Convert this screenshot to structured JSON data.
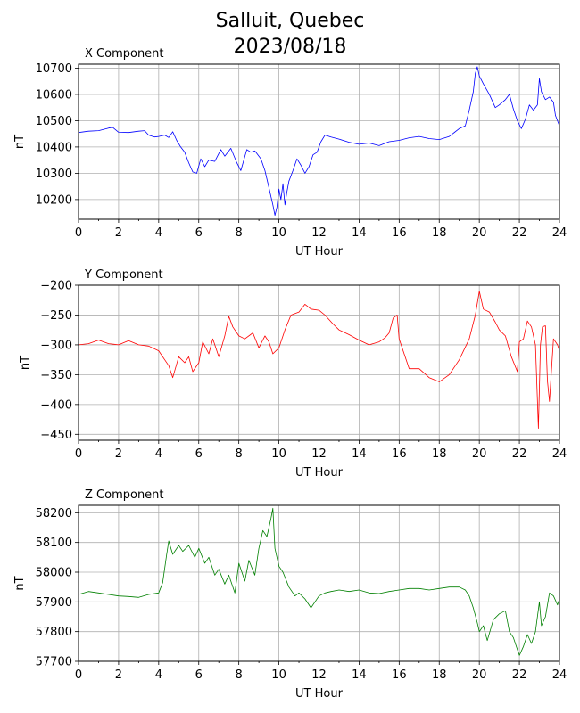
{
  "title_line1": "Salluit, Quebec",
  "title_line2": "2023/08/18",
  "chart_data": [
    {
      "type": "line",
      "title": "X Component",
      "xlabel": "UT Hour",
      "ylabel": "nT",
      "xlim": [
        0,
        24
      ],
      "ylim": [
        10125,
        10715
      ],
      "xticks": [
        0,
        2,
        4,
        6,
        8,
        10,
        12,
        14,
        16,
        18,
        20,
        22,
        24
      ],
      "yticks": [
        10200,
        10300,
        10400,
        10500,
        10600,
        10700
      ],
      "grid": true,
      "color": "#0000ff",
      "series": [
        {
          "x": [
            0,
            0.5,
            1,
            1.5,
            1.7,
            2,
            2.5,
            3,
            3.3,
            3.5,
            3.8,
            4,
            4.3,
            4.5,
            4.7,
            4.9,
            5.1,
            5.3,
            5.5,
            5.7,
            5.9,
            6.1,
            6.3,
            6.5,
            6.8,
            7.1,
            7.3,
            7.6,
            7.9,
            8.1,
            8.4,
            8.6,
            8.8,
            9.1,
            9.3,
            9.5,
            9.7,
            9.8,
            9.9,
            10,
            10.1,
            10.2,
            10.3,
            10.4,
            10.5,
            10.7,
            10.9,
            11.1,
            11.3,
            11.5,
            11.7,
            11.9,
            12.1,
            12.3,
            12.6,
            13,
            13.5,
            14,
            14.5,
            15,
            15.5,
            16,
            16.5,
            17,
            17.5,
            18,
            18.5,
            19,
            19.3,
            19.5,
            19.7,
            19.8,
            19.9,
            20,
            20.2,
            20.5,
            20.8,
            21,
            21.3,
            21.5,
            21.7,
            21.9,
            22.1,
            22.3,
            22.5,
            22.7,
            22.9,
            23,
            23.1,
            23.3,
            23.5,
            23.7,
            23.8,
            24
          ],
          "y": [
            10455,
            10460,
            10462,
            10472,
            10475,
            10456,
            10455,
            10460,
            10462,
            10445,
            10438,
            10440,
            10445,
            10436,
            10458,
            10425,
            10400,
            10380,
            10340,
            10305,
            10300,
            10355,
            10325,
            10350,
            10345,
            10390,
            10365,
            10395,
            10340,
            10310,
            10390,
            10380,
            10385,
            10355,
            10310,
            10245,
            10180,
            10140,
            10170,
            10240,
            10200,
            10260,
            10180,
            10230,
            10270,
            10310,
            10355,
            10330,
            10300,
            10325,
            10370,
            10380,
            10420,
            10445,
            10438,
            10430,
            10418,
            10410,
            10415,
            10405,
            10420,
            10425,
            10435,
            10440,
            10432,
            10428,
            10440,
            10470,
            10480,
            10540,
            10610,
            10680,
            10705,
            10670,
            10640,
            10600,
            10550,
            10560,
            10580,
            10600,
            10545,
            10500,
            10470,
            10505,
            10560,
            10540,
            10560,
            10660,
            10610,
            10580,
            10590,
            10570,
            10520,
            10480
          ]
        }
      ]
    },
    {
      "type": "line",
      "title": "Y Component",
      "xlabel": "UT Hour",
      "ylabel": "nT",
      "xlim": [
        0,
        24
      ],
      "ylim": [
        -460,
        -200
      ],
      "xticks": [
        0,
        2,
        4,
        6,
        8,
        10,
        12,
        14,
        16,
        18,
        20,
        22,
        24
      ],
      "yticks": [
        -450,
        -400,
        -350,
        -300,
        -250,
        -200
      ],
      "grid": true,
      "color": "#ff0000",
      "series": [
        {
          "x": [
            0,
            0.5,
            1,
            1.5,
            2,
            2.5,
            3,
            3.5,
            4,
            4.3,
            4.5,
            4.7,
            5,
            5.3,
            5.5,
            5.7,
            6,
            6.2,
            6.5,
            6.7,
            7,
            7.3,
            7.5,
            7.7,
            8,
            8.3,
            8.7,
            9,
            9.3,
            9.5,
            9.7,
            10,
            10.3,
            10.6,
            11,
            11.3,
            11.6,
            12,
            12.3,
            12.7,
            13,
            13.5,
            14,
            14.5,
            15,
            15.3,
            15.5,
            15.7,
            15.9,
            16,
            16.2,
            16.5,
            17,
            17.5,
            18,
            18.5,
            19,
            19.5,
            19.8,
            20,
            20.2,
            20.5,
            20.8,
            21,
            21.3,
            21.6,
            21.9,
            22,
            22.2,
            22.4,
            22.6,
            22.8,
            22.95,
            23.05,
            23.15,
            23.3,
            23.4,
            23.5,
            23.7,
            23.9,
            24
          ],
          "y": [
            -300,
            -298,
            -292,
            -298,
            -300,
            -293,
            -300,
            -302,
            -310,
            -325,
            -335,
            -355,
            -320,
            -330,
            -320,
            -345,
            -330,
            -295,
            -315,
            -290,
            -320,
            -285,
            -252,
            -270,
            -285,
            -290,
            -280,
            -305,
            -285,
            -295,
            -315,
            -305,
            -275,
            -250,
            -245,
            -232,
            -240,
            -242,
            -250,
            -265,
            -275,
            -283,
            -292,
            -300,
            -295,
            -288,
            -280,
            -255,
            -250,
            -290,
            -310,
            -340,
            -340,
            -355,
            -362,
            -350,
            -325,
            -290,
            -250,
            -210,
            -240,
            -245,
            -262,
            -275,
            -285,
            -320,
            -345,
            -295,
            -290,
            -260,
            -270,
            -300,
            -440,
            -300,
            -270,
            -268,
            -360,
            -395,
            -290,
            -300,
            -310
          ]
        }
      ]
    },
    {
      "type": "line",
      "title": "Z Component",
      "xlabel": "UT Hour",
      "ylabel": "nT",
      "xlim": [
        0,
        24
      ],
      "ylim": [
        57700,
        58225
      ],
      "xticks": [
        0,
        2,
        4,
        6,
        8,
        10,
        12,
        14,
        16,
        18,
        20,
        22,
        24
      ],
      "yticks": [
        57700,
        57800,
        57900,
        58000,
        58100,
        58200
      ],
      "grid": true,
      "color": "#008000",
      "series": [
        {
          "x": [
            0,
            0.5,
            1,
            1.5,
            2,
            2.5,
            3,
            3.5,
            4,
            4.2,
            4.4,
            4.5,
            4.7,
            5,
            5.2,
            5.5,
            5.8,
            6,
            6.3,
            6.5,
            6.8,
            7,
            7.3,
            7.5,
            7.8,
            8,
            8.3,
            8.5,
            8.8,
            9,
            9.2,
            9.4,
            9.6,
            9.7,
            9.8,
            10,
            10.2,
            10.5,
            10.8,
            11,
            11.3,
            11.6,
            11.8,
            12,
            12.3,
            12.6,
            13,
            13.5,
            14,
            14.5,
            15,
            15.5,
            16,
            16.5,
            17,
            17.5,
            18,
            18.5,
            19,
            19.3,
            19.5,
            19.7,
            19.9,
            20,
            20.2,
            20.4,
            20.7,
            21,
            21.3,
            21.5,
            21.7,
            21.9,
            22,
            22.2,
            22.4,
            22.6,
            22.8,
            23,
            23.1,
            23.3,
            23.5,
            23.7,
            23.9,
            24
          ],
          "y": [
            57925,
            57935,
            57930,
            57925,
            57920,
            57918,
            57915,
            57925,
            57930,
            57965,
            58060,
            58105,
            58060,
            58090,
            58070,
            58090,
            58050,
            58080,
            58030,
            58050,
            57990,
            58010,
            57960,
            57990,
            57930,
            58030,
            57970,
            58040,
            57990,
            58080,
            58140,
            58120,
            58180,
            58215,
            58080,
            58020,
            58000,
            57950,
            57920,
            57930,
            57910,
            57880,
            57900,
            57920,
            57930,
            57935,
            57940,
            57935,
            57940,
            57930,
            57928,
            57935,
            57940,
            57945,
            57945,
            57940,
            57945,
            57950,
            57950,
            57940,
            57920,
            57880,
            57830,
            57800,
            57820,
            57770,
            57840,
            57860,
            57870,
            57800,
            57780,
            57740,
            57720,
            57750,
            57790,
            57760,
            57800,
            57900,
            57820,
            57850,
            57930,
            57920,
            57890,
            57910
          ]
        }
      ]
    }
  ]
}
